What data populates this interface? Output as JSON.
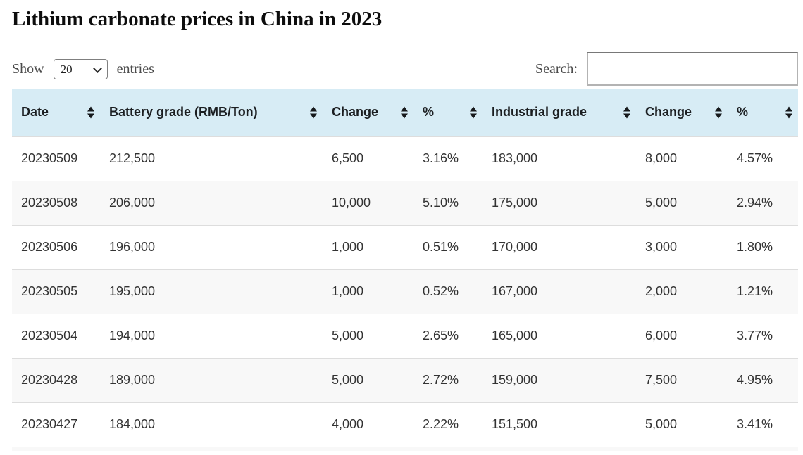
{
  "title": "Lithium carbonate prices in China in 2023",
  "controls": {
    "show_label": "Show",
    "entries_label": "entries",
    "page_length": "20",
    "search_label": "Search:",
    "search_value": ""
  },
  "icons": {
    "sort": "sort-up-down-arrows",
    "select_arrow": "chevron-down"
  },
  "table": {
    "columns": [
      {
        "label": "Date"
      },
      {
        "label": "Battery grade (RMB/Ton)"
      },
      {
        "label": "Change"
      },
      {
        "label": "%"
      },
      {
        "label": "Industrial grade"
      },
      {
        "label": "Change"
      },
      {
        "label": "%"
      }
    ],
    "rows": [
      [
        "20230509",
        "212,500",
        "6,500",
        "3.16%",
        "183,000",
        "8,000",
        "4.57%"
      ],
      [
        "20230508",
        "206,000",
        "10,000",
        "5.10%",
        "175,000",
        "5,000",
        "2.94%"
      ],
      [
        "20230506",
        "196,000",
        "1,000",
        "0.51%",
        "170,000",
        "3,000",
        "1.80%"
      ],
      [
        "20230505",
        "195,000",
        "1,000",
        "0.52%",
        "167,000",
        "2,000",
        "1.21%"
      ],
      [
        "20230504",
        "194,000",
        "5,000",
        "2.65%",
        "165,000",
        "6,000",
        "3.77%"
      ],
      [
        "20230428",
        "189,000",
        "5,000",
        "2.72%",
        "159,000",
        "7,500",
        "4.95%"
      ],
      [
        "20230427",
        "184,000",
        "4,000",
        "2.22%",
        "151,500",
        "5,000",
        "3.41%"
      ]
    ]
  },
  "colors": {
    "header_bg": "#d7ecf5",
    "stripe_bg": "#f8f8f8",
    "row_border": "#dddddd"
  }
}
